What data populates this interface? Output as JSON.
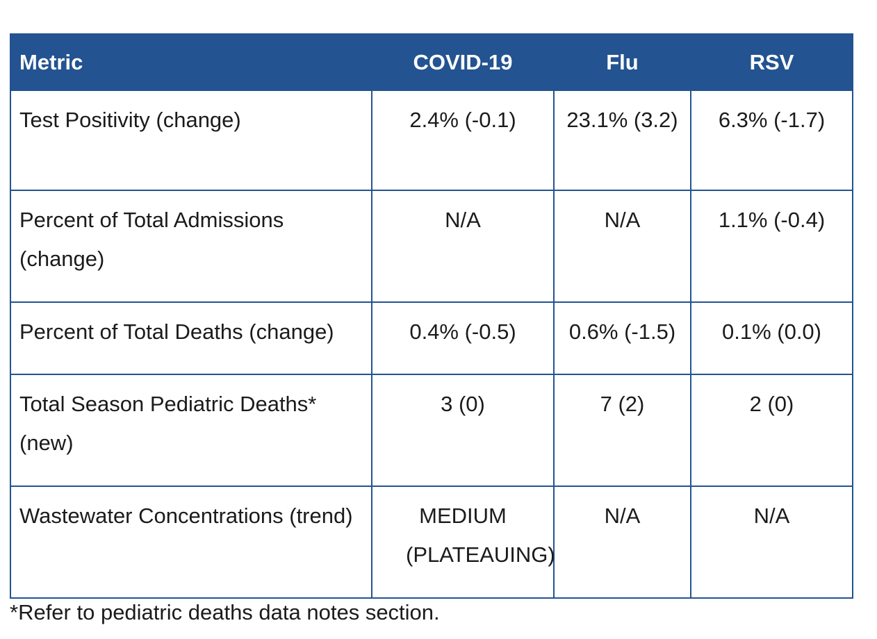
{
  "table": {
    "headers": [
      "Metric",
      "COVID-19",
      "Flu",
      "RSV"
    ],
    "rows": [
      {
        "metric": "Test Positivity (change)",
        "covid": "2.4% (-0.1)",
        "flu": "23.1% (3.2)",
        "rsv": "6.3% (-1.7)"
      },
      {
        "metric": "Percent of Total Admissions (change)",
        "covid": "N/A",
        "flu": "N/A",
        "rsv": "1.1% (-0.4)"
      },
      {
        "metric": "Percent of Total Deaths (change)",
        "covid": "0.4% (-0.5)",
        "flu": "0.6% (-1.5)",
        "rsv": "0.1% (0.0)"
      },
      {
        "metric": "Total Season Pediatric Deaths* (new)",
        "covid": "3 (0)",
        "flu": "7 (2)",
        "rsv": "2 (0)"
      },
      {
        "metric": "Wastewater Concentrations (trend)",
        "covid": "MEDIUM (PLATEAUING)",
        "flu": "N/A",
        "rsv": "N/A"
      }
    ]
  },
  "footnote": "*Refer to pediatric deaths data notes section.",
  "colors": {
    "header_bg": "#235390",
    "header_text": "#ffffff",
    "border": "#235390",
    "text": "#1b1b1b"
  }
}
